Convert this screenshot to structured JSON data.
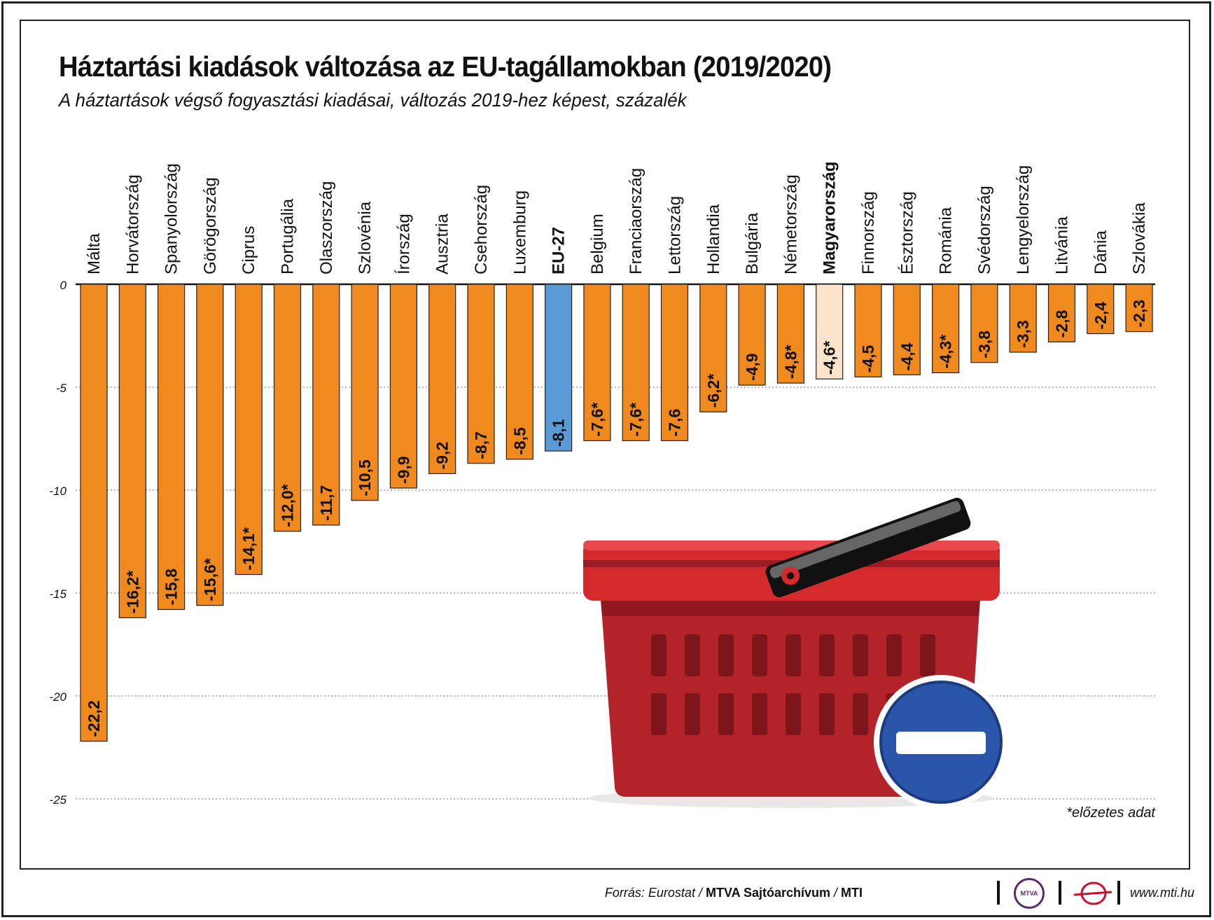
{
  "title": "Háztartási kiadások változása az EU-tagállamokban (2019/2020)",
  "subtitle": "A háztartások végső fogyasztási kiadásai, változás 2019-hez képest, százalék",
  "footnote": "*előzetes adat",
  "source": {
    "prefix": "Forrás: Eurostat / ",
    "archive": "MTVA Sajtóarchívum",
    "sep": " / ",
    "agency": "MTI"
  },
  "logo_text": "MTVA",
  "website": "www.mti.hu",
  "colors": {
    "bar": "#f08a1e",
    "eu_bar": "#5b9bd5",
    "hungary_bar": "#fde3cc",
    "bar_stroke": "#222222",
    "grid": "#888888"
  },
  "chart_data": {
    "type": "bar",
    "title": "Háztartási kiadások változása az EU-tagállamokban (2019/2020)",
    "ylabel": "százalék",
    "ylim": [
      -25,
      0
    ],
    "yticks": [
      "0",
      "-5",
      "-10",
      "-15",
      "-20",
      "-25"
    ],
    "categories": [
      "Málta",
      "Horvátország",
      "Spanyolország",
      "Görögország",
      "Ciprus",
      "Portugália",
      "Olaszország",
      "Szlovénia",
      "Írország",
      "Ausztria",
      "Csehország",
      "Luxemburg",
      "EU-27",
      "Belgium",
      "Franciaország",
      "Lettország",
      "Hollandia",
      "Bulgária",
      "Németország",
      "Magyarország",
      "Finnország",
      "Észtország",
      "Románia",
      "Svédország",
      "Lengyelország",
      "Litvánia",
      "Dánia",
      "Szlovákia"
    ],
    "values": [
      -22.2,
      -16.2,
      -15.8,
      -15.6,
      -14.1,
      -12.0,
      -11.7,
      -10.5,
      -9.9,
      -9.2,
      -8.7,
      -8.5,
      -8.1,
      -7.6,
      -7.6,
      -7.6,
      -6.2,
      -4.9,
      -4.8,
      -4.6,
      -4.5,
      -4.4,
      -4.3,
      -3.8,
      -3.3,
      -2.8,
      -2.4,
      -2.3
    ],
    "labels": [
      "-22,2",
      "-16,2*",
      "-15,8",
      "-15,6*",
      "-14,1*",
      "-12,0*",
      "-11,7",
      "-10,5",
      "-9,9",
      "-9,2",
      "-8,7",
      "-8,5",
      "-8,1",
      "-7,6*",
      "-7,6*",
      "-7,6",
      "-6,2*",
      "-4,9",
      "-4,8*",
      "-4,6*",
      "-4,5",
      "-4,4",
      "-4,3*",
      "-3,8",
      "-3,3",
      "-2,8",
      "-2,4",
      "-2,3"
    ],
    "highlight": {
      "EU-27": "eu",
      "Magyarország": "hungary"
    },
    "grid": true
  }
}
